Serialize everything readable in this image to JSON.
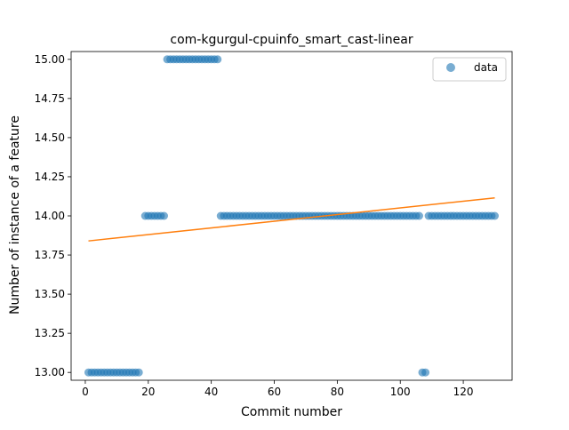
{
  "chart_data": {
    "type": "scatter",
    "title": "com-kgurgul-cpuinfo_smart_cast-linear",
    "xlabel": "Commit number",
    "ylabel": "Number of instance of a feature",
    "xlim": [
      -4.5,
      135.5
    ],
    "ylim": [
      12.95,
      15.05
    ],
    "xticks": [
      0,
      20,
      40,
      60,
      80,
      100,
      120
    ],
    "yticks": [
      13.0,
      13.25,
      13.5,
      13.75,
      14.0,
      14.25,
      14.5,
      14.75,
      15.0
    ],
    "ytick_labels": [
      "13.00",
      "13.25",
      "13.50",
      "13.75",
      "14.00",
      "14.25",
      "14.50",
      "14.75",
      "15.00"
    ],
    "grid": false,
    "legend": {
      "position": "top-right",
      "entries": [
        "data"
      ]
    },
    "colors": {
      "data": "#1f77b4",
      "fit": "#ff7f0e"
    },
    "series": [
      {
        "name": "data",
        "kind": "scatter",
        "segments": [
          {
            "x_start": 1,
            "x_end": 17,
            "y": 13.0
          },
          {
            "x_start": 19,
            "x_end": 25,
            "y": 14.0
          },
          {
            "x_start": 26,
            "x_end": 42,
            "y": 15.0
          },
          {
            "x_start": 43,
            "x_end": 106,
            "y": 14.0
          },
          {
            "x_start": 107,
            "x_end": 108,
            "y": 13.0
          },
          {
            "x_start": 109,
            "x_end": 130,
            "y": 14.0
          }
        ]
      },
      {
        "kind": "line",
        "x": [
          1,
          130
        ],
        "y": [
          13.84,
          14.115
        ]
      }
    ]
  }
}
